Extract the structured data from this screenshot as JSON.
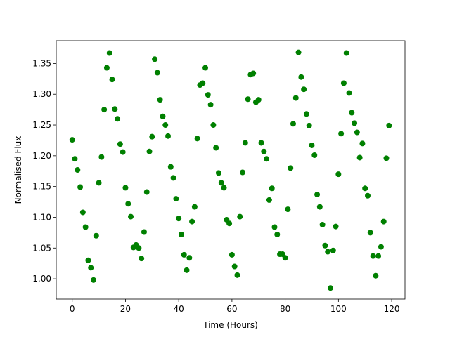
{
  "chart_data": {
    "type": "scatter",
    "xlabel": "Time (Hours)",
    "ylabel": "Normalised Flux",
    "color": "#008000",
    "grid": false,
    "xlim": [
      -6,
      125
    ],
    "ylim": [
      0.967,
      1.387
    ],
    "xticks": [
      0,
      20,
      40,
      60,
      80,
      100,
      120
    ],
    "yticks": [
      {
        "value": 1.0,
        "label": "1.00"
      },
      1.05,
      {
        "value": 1.1,
        "label": "1.10"
      },
      1.15,
      {
        "value": 1.2,
        "label": "1.20"
      },
      1.25,
      {
        "value": 1.3,
        "label": "1.30"
      },
      1.35
    ],
    "x": [
      0,
      1,
      2,
      3,
      4,
      5,
      6,
      7,
      8,
      9,
      10,
      11,
      12,
      13,
      14,
      15,
      16,
      17,
      18,
      19,
      20,
      21,
      22,
      23,
      24,
      25,
      26,
      27,
      28,
      29,
      30,
      31,
      32,
      33,
      34,
      35,
      36,
      37,
      38,
      39,
      40,
      41,
      42,
      43,
      44,
      45,
      46,
      47,
      48,
      49,
      50,
      51,
      52,
      53,
      54,
      55,
      56,
      57,
      58,
      59,
      60,
      61,
      62,
      63,
      64,
      65,
      66,
      67,
      68,
      69,
      70,
      71,
      72,
      73,
      74,
      75,
      76,
      77,
      78,
      79,
      80,
      81,
      82,
      83,
      84,
      85,
      86,
      87,
      88,
      89,
      90,
      91,
      92,
      93,
      94,
      95,
      96,
      97,
      98,
      99,
      100,
      101,
      102,
      103,
      104,
      105,
      106,
      107,
      108,
      109,
      110,
      111,
      112,
      113,
      114,
      115,
      116,
      117,
      118,
      119
    ],
    "values": [
      1.226,
      1.195,
      1.177,
      1.149,
      1.108,
      1.084,
      1.03,
      1.018,
      0.998,
      1.07,
      1.156,
      1.198,
      1.275,
      1.343,
      1.367,
      1.324,
      1.276,
      1.26,
      1.219,
      1.206,
      1.148,
      1.122,
      1.101,
      1.051,
      1.055,
      1.05,
      1.033,
      1.076,
      1.141,
      1.207,
      1.231,
      1.357,
      1.335,
      1.291,
      1.264,
      1.25,
      1.232,
      1.182,
      1.164,
      1.13,
      1.098,
      1.072,
      1.039,
      1.014,
      1.034,
      1.093,
      1.117,
      1.228,
      1.315,
      1.318,
      1.343,
      1.299,
      1.283,
      1.25,
      1.213,
      1.172,
      1.156,
      1.148,
      1.096,
      1.09,
      1.039,
      1.02,
      1.006,
      1.101,
      1.173,
      1.221,
      1.292,
      1.332,
      1.334,
      1.287,
      1.291,
      1.221,
      1.207,
      1.195,
      1.128,
      1.147,
      1.084,
      1.072,
      1.04,
      1.04,
      1.034,
      1.113,
      1.18,
      1.252,
      1.294,
      1.368,
      1.328,
      1.308,
      1.268,
      1.249,
      1.217,
      1.201,
      1.137,
      1.117,
      1.088,
      1.054,
      1.044,
      0.985,
      1.046,
      1.085,
      1.17,
      1.236,
      1.318,
      1.367,
      1.302,
      1.27,
      1.253,
      1.238,
      1.197,
      1.22,
      1.147,
      1.135,
      1.075,
      1.037,
      1.005,
      1.037,
      1.052,
      1.093,
      1.196,
      1.249
    ]
  }
}
